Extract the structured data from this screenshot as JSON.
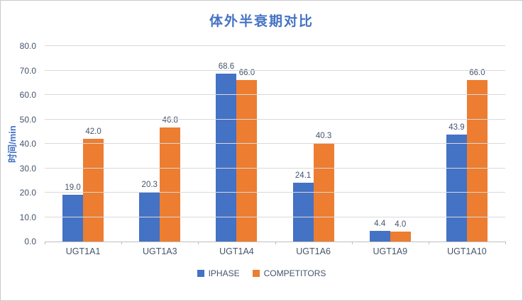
{
  "chart_data": {
    "type": "bar",
    "title": "体外半衰期对比",
    "xlabel": "",
    "ylabel": "时间/min",
    "categories": [
      "UGT1A1",
      "UGT1A3",
      "UGT1A4",
      "UGT1A6",
      "UGT1A9",
      "UGT1A10"
    ],
    "series": [
      {
        "name": "IPHASE",
        "color": "#4472C4",
        "values": [
          19.0,
          20.3,
          68.6,
          24.1,
          4.4,
          43.9
        ]
      },
      {
        "name": "COMPETITORS",
        "color": "#ED7D31",
        "values": [
          42.0,
          46.8,
          66.0,
          40.3,
          4.0,
          66.0
        ]
      }
    ],
    "ylim": [
      0,
      80
    ],
    "ytick_step": 10,
    "grid": true,
    "legend_position": "bottom",
    "colors": {
      "title": "#4472C4",
      "axis_title": "#4472C4",
      "tick_label": "#44546A",
      "data_label": "#44546A",
      "gridline": "#d9d9d9",
      "axis_line": "#bfbfbf"
    }
  }
}
